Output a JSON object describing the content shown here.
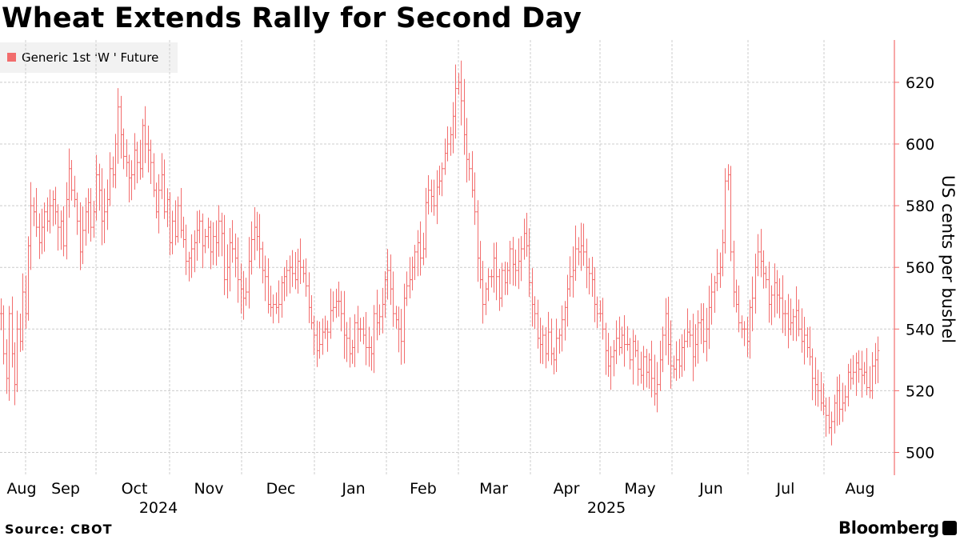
{
  "title": "Wheat Extends Rally for Second Day",
  "source": "Source: CBOT",
  "brand": "Bloomberg",
  "colors": {
    "series": "#f26d6d",
    "grid": "#cccccc",
    "axis": "#f26d6d"
  },
  "chart_data": {
    "type": "line",
    "title": "Wheat Extends Rally for Second Day",
    "series": [
      {
        "name": "Generic 1st 'W ' Future",
        "values": [
          545,
          532,
          524,
          545,
          532,
          522,
          540,
          536,
          552,
          545,
          567,
          580,
          578,
          573,
          568,
          573,
          578,
          575,
          580,
          582,
          578,
          573,
          575,
          567,
          582,
          592,
          585,
          582,
          575,
          565,
          572,
          578,
          581,
          573,
          578,
          590,
          585,
          575,
          578,
          582,
          592,
          590,
          600,
          612,
          603,
          596,
          594,
          589,
          590,
          598,
          594,
          592,
          606,
          600,
          598,
          594,
          585,
          578,
          585,
          590,
          578,
          582,
          568,
          575,
          570,
          580,
          572,
          569,
          562,
          563,
          566,
          568,
          572,
          575,
          567,
          570,
          573,
          565,
          570,
          568,
          575,
          571,
          556,
          560,
          568,
          566,
          563,
          556,
          553,
          550,
          552,
          562,
          569,
          573,
          570,
          566,
          559,
          557,
          548,
          547,
          548,
          547,
          548,
          555,
          557,
          559,
          560,
          558,
          556,
          562,
          560,
          558,
          554,
          547,
          542,
          538,
          533,
          535,
          539,
          540,
          539,
          546,
          547,
          549,
          549,
          545,
          538,
          537,
          532,
          534,
          542,
          540,
          540,
          538,
          534,
          534,
          532,
          545,
          542,
          544,
          548,
          556,
          559,
          553,
          545,
          543,
          540,
          536,
          550,
          554,
          556,
          560,
          565,
          568,
          563,
          566,
          581,
          585,
          583,
          580,
          586,
          588,
          592,
          597,
          600,
          603,
          609,
          618,
          620,
          614,
          603,
          595,
          592,
          585,
          578,
          563,
          556,
          548,
          553,
          557,
          557,
          563,
          557,
          550,
          559,
          555,
          559,
          566,
          561,
          559,
          562,
          566,
          571,
          567,
          555,
          548,
          545,
          537,
          535,
          538,
          532,
          539,
          532,
          530,
          537,
          538,
          543,
          547,
          553,
          557,
          559,
          566,
          565,
          567,
          565,
          560,
          558,
          556,
          548,
          545,
          545,
          540,
          533,
          528,
          531,
          533,
          537,
          534,
          538,
          535,
          535,
          530,
          536,
          533,
          527,
          525,
          531,
          526,
          530,
          524,
          519,
          522,
          530,
          538,
          545,
          535,
          528,
          527,
          530,
          528,
          534,
          536,
          539,
          538,
          531,
          535,
          542,
          543,
          536,
          540,
          547,
          552,
          555,
          558,
          560,
          568,
          588,
          590,
          565,
          552,
          548,
          542,
          540,
          540,
          536,
          547,
          550,
          560,
          565,
          562,
          558,
          556,
          548,
          551,
          555,
          551,
          550,
          545,
          545,
          540,
          542,
          544,
          546,
          540,
          536,
          538,
          534,
          531,
          524,
          522,
          520,
          516,
          515,
          512,
          508,
          510,
          516,
          520,
          514,
          516,
          518,
          526,
          524,
          526,
          529,
          527,
          525,
          526,
          521,
          520,
          528,
          530,
          533
        ]
      }
    ],
    "x_ticks": [
      "Aug",
      "Sep",
      "Oct",
      "Nov",
      "Dec",
      "Jan",
      "Feb",
      "Mar",
      "Apr",
      "May",
      "Jun",
      "Jul",
      "Aug"
    ],
    "year_labels": [
      "2024",
      "2025"
    ],
    "ylabel": "US cents per bushel",
    "y_ticks": [
      500,
      520,
      540,
      560,
      580,
      600,
      620
    ],
    "ylim": [
      492,
      632
    ],
    "x_range": [
      "2024-07-29",
      "2025-08-14"
    ],
    "grid": true,
    "legend": "top-left",
    "y_axis_side": "right"
  }
}
